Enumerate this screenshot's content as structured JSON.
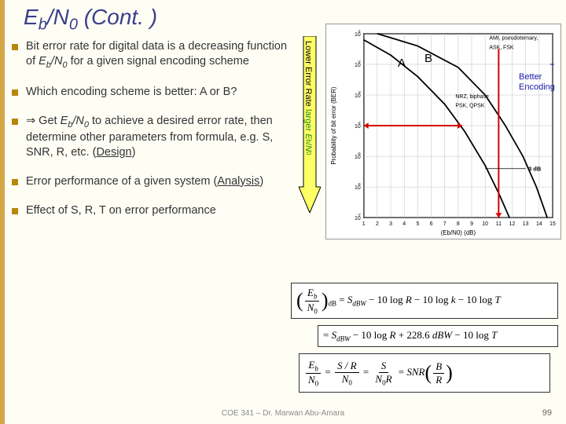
{
  "title_html": "E<sub class='sub'>b</sub>/N<sub class='sub'>0</sub> (Cont. )",
  "bullets": [
    "Bit error rate for digital data is a decreasing function of <span class='ital'>E<span class='isub'>b</span>/N<span class='isub'>0</span></span> for a given signal encoding scheme",
    "Which encoding scheme is better: A or B?",
    "⇒ Get <span class='ital'>E<span class='isub'>b</span>/N<span class='isub'>0</span></span> to achieve a desired error rate, then determine other parameters from formula, e.g. S, SNR, R, etc. (<span class='ul'>Design</span>)",
    "Error performance of a given system (<span class='ul'>Analysis</span>)",
    "Effect of S, R, T on error performance"
  ],
  "arrow": {
    "fill": "#ffff66",
    "stroke": "#000000",
    "label_html": "Lower Error Rate <span class='green'>larger <i>E</i><span class='sub2'>b</span>/<i>N</i><span class='sub2'>0</span></span>"
  },
  "chart": {
    "bg": "#ffffff",
    "border": "#999999",
    "grid_color": "#bfbfbf",
    "axis_color": "#000000",
    "curve_a_color": "#000000",
    "curve_b_color": "#000000",
    "red_arrow_color": "#d40000",
    "x_ticks": [
      1,
      2,
      3,
      4,
      5,
      6,
      7,
      8,
      9,
      10,
      11,
      12,
      13,
      14,
      15
    ],
    "xlabel": "(Eb/N0) (dB)",
    "y_exp": [
      -1,
      -2,
      -3,
      -4,
      -5,
      -6,
      -7
    ],
    "ylabel": "Probability of bit error (BER)",
    "legend_top": "AMI, pseudoternary, ASK, FSK",
    "legend_mid": "NRZ, biphase PSK, QPSK",
    "legend_3db": "3 dB",
    "curve_a_label": "A",
    "curve_b_label": "B",
    "better_label": "Better\nEncoding",
    "label_fontsize": 8,
    "tick_fontsize": 7
  },
  "equations": {
    "eq1_html": "<span class='paren'>(</span><span class='fr'><span class='n'><i>E<span class='esub'>b</span></i></span><span class='d'><i>N</i><span class='esub'>0</span></span></span><span class='paren'>)</span><span class='esub'>dB</span> = <i>S<span class='esub'>dBW</span></i> − 10 log <i>R</i> − 10 log <i>k</i> − 10 log <i>T</i>",
    "eq2_html": "= <i>S<span class='esub'>dBW</span></i> − 10 log <i>R</i> + 228.6 <i>dBW</i> − 10 log <i>T</i>",
    "eq3_html": "<span class='fr'><span class='n'><i>E<span class='esub'>b</span></i></span><span class='d'><i>N</i><span class='esub'>0</span></span></span> = <span class='fr'><span class='n'><i>S / R</i></span><span class='d'><i>N</i><span class='esub'>0</span></span></span> = <span class='fr'><span class='n'><i>S</i></span><span class='d'><i>N</i><span class='esub'>0</span><i>R</i></span></span> = <i>SNR</i><span class='paren'>(</span><span class='fr'><span class='n'><i>B</i></span><span class='d'><i>R</i></span></span><span class='paren'>)</span>"
  },
  "footer": "COE 341 – Dr. Marwan Abu-Amara",
  "page": "99",
  "colors": {
    "slide_bg": "#fffef5",
    "title_color": "#3a3f8a",
    "bullet_square": "#b8860b"
  }
}
